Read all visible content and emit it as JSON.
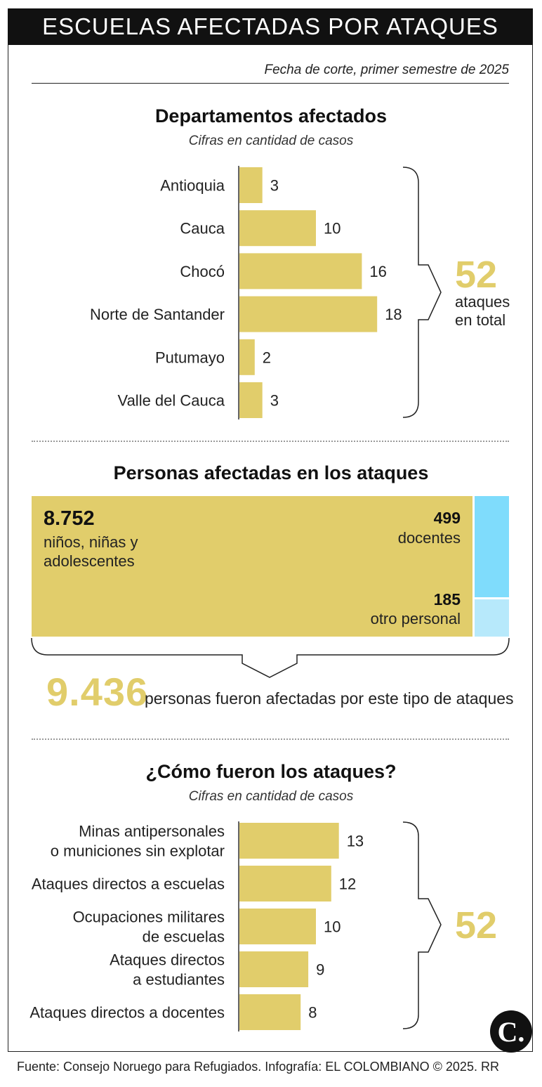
{
  "header": {
    "title": "ESCUELAS AFECTADAS POR ATAQUES"
  },
  "date_line": "Fecha de corte, primer semestre de 2025",
  "section1": {
    "title": "Departamentos afectados",
    "subtitle": "Cifras en cantidad de casos",
    "total_value": "52",
    "total_text_line1": "ataques",
    "total_text_line2": "en total"
  },
  "section2": {
    "title": "Personas afectadas en los ataques",
    "group1_value": "8.752",
    "group1_line1": "niños, niñas y",
    "group1_line2": "adolescentes",
    "group2_value": "499",
    "group2_label": "docentes",
    "group3_value": "185",
    "group3_label": "otro personal",
    "total_value": "9.436",
    "total_text": "personas fueron afectadas por este tipo de ataques"
  },
  "section3": {
    "title": "¿Cómo fueron los ataques?",
    "subtitle": "Cifras en cantidad de casos",
    "total_value": "52"
  },
  "colors": {
    "bar": "#e1cd6b",
    "blue_docentes": "#7fdcfc",
    "blue_otro": "#b7e9fb",
    "header_bg": "#111111"
  },
  "logo": {
    "text": "C."
  },
  "footer": "Fuente: Consejo Noruego para Refugiados. Infografía: EL COLOMBIANO © 2025. RR",
  "chart_data": [
    {
      "type": "bar",
      "orientation": "horizontal",
      "title": "Departamentos afectados",
      "subtitle": "Cifras en cantidad de casos",
      "categories": [
        "Antioquia",
        "Cauca",
        "Chocó",
        "Norte de Santander",
        "Putumayo",
        "Valle del Cauca"
      ],
      "values": [
        3,
        10,
        16,
        18,
        2,
        3
      ]
    },
    {
      "type": "table",
      "title": "Personas afectadas en los ataques",
      "categories": [
        "niños, niñas y adolescentes",
        "docentes",
        "otro personal"
      ],
      "values": [
        8752,
        499,
        185
      ],
      "total": 9436
    },
    {
      "type": "bar",
      "orientation": "horizontal",
      "title": "¿Cómo fueron los ataques?",
      "subtitle": "Cifras en cantidad de casos",
      "categories": [
        [
          "Minas antipersonales",
          "o municiones sin explotar"
        ],
        [
          "Ataques directos a escuelas"
        ],
        [
          "Ocupaciones militares",
          "de escuelas"
        ],
        [
          "Ataques directos",
          "a estudiantes"
        ],
        [
          "Ataques directos a docentes"
        ]
      ],
      "values": [
        13,
        12,
        10,
        9,
        8
      ]
    }
  ]
}
